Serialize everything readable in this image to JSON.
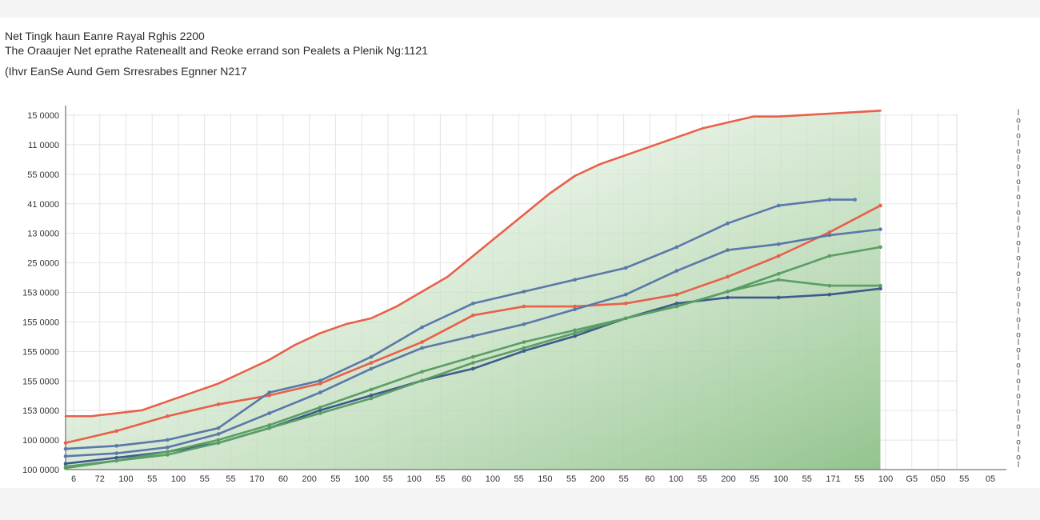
{
  "chart_data": {
    "type": "line",
    "title": "Net Tingk haun Eanre Rayal Rghis 2200",
    "subtitle": "The Oraaujer Net eprathe Rateneallt and Reoke errand son Pealets a Plenik Ng:1121",
    "caption": "(Ihvr EanSe Aund Gem Srresrabes Egnner N217",
    "xlabel": "",
    "ylabel": "",
    "grid": true,
    "legend": "none",
    "y_tick_labels": [
      "15 0000",
      "11 0000",
      "55 0000",
      "41 0000",
      "13 0000",
      "25 0000",
      "153 0000",
      "155 0000",
      "155 0000",
      "155 0000",
      "153 0000",
      "100 0000",
      "100 0000"
    ],
    "x_tick_labels": [
      "6",
      "72",
      "100",
      "55",
      "100",
      "55",
      "55",
      "170",
      "60",
      "200",
      "55",
      "100",
      "55",
      "100",
      "55",
      "60",
      "100",
      "55",
      "150",
      "55",
      "200",
      "55",
      "60",
      "100",
      "55",
      "200",
      "55",
      "100",
      "55",
      "171",
      "55",
      "100",
      "G5",
      "050",
      "55",
      "05"
    ],
    "right_tick_labels": [
      "l",
      "o",
      "l",
      "o",
      "l",
      "o",
      "l",
      "o",
      "l",
      "o",
      "l",
      "o",
      "l",
      "o",
      "l",
      "o",
      "l",
      "o",
      "l",
      "o",
      "l",
      "o",
      "l",
      "o",
      "l",
      "o",
      "l",
      "o",
      "l",
      "o",
      "l",
      "o",
      "l",
      "o",
      "l",
      "o",
      "l",
      "o",
      "l",
      "o",
      "l",
      "o",
      "l",
      "o",
      "l",
      "o",
      "l"
    ],
    "ylim": [
      0,
      12
    ],
    "xlim": [
      0,
      35
    ],
    "colors": {
      "red": "#e8604a",
      "blue": "#5a78a8",
      "navy": "#3d5a8c",
      "green": "#5a9e64",
      "fill": "#9ccc98"
    },
    "series": [
      {
        "color": "red",
        "marker": false,
        "x": [
          0,
          1,
          2,
          3,
          4,
          5,
          6,
          7,
          8,
          9,
          10,
          11,
          12,
          13,
          14,
          15,
          16,
          17,
          18,
          19,
          20,
          21,
          22,
          23,
          24,
          25,
          26,
          27,
          28,
          29,
          30,
          31,
          32
        ],
        "y": [
          1.8,
          1.8,
          1.9,
          2.0,
          2.3,
          2.6,
          2.9,
          3.3,
          3.7,
          4.2,
          4.6,
          4.9,
          5.1,
          5.5,
          6.0,
          6.5,
          7.2,
          7.9,
          8.6,
          9.3,
          9.9,
          10.3,
          10.6,
          10.9,
          11.2,
          11.5,
          11.7,
          11.9,
          11.9,
          11.95,
          12.0,
          12.05,
          12.1
        ]
      },
      {
        "color": "red",
        "marker": true,
        "x": [
          0,
          2,
          4,
          6,
          8,
          10,
          12,
          14,
          16,
          18,
          20,
          22,
          24,
          26,
          28,
          30,
          32
        ],
        "y": [
          0.9,
          1.3,
          1.8,
          2.2,
          2.5,
          2.9,
          3.6,
          4.3,
          5.2,
          5.5,
          5.5,
          5.6,
          5.9,
          6.5,
          7.2,
          8.0,
          8.9
        ]
      },
      {
        "color": "blue",
        "marker": true,
        "x": [
          0,
          2,
          4,
          6,
          8,
          10,
          12,
          14,
          16,
          18,
          20,
          22,
          24,
          26,
          28,
          30,
          31
        ],
        "y": [
          0.7,
          0.8,
          1.0,
          1.4,
          2.6,
          3.0,
          3.8,
          4.8,
          5.6,
          6.0,
          6.4,
          6.8,
          7.5,
          8.3,
          8.9,
          9.1,
          9.1
        ]
      },
      {
        "color": "blue",
        "marker": true,
        "x": [
          0,
          2,
          4,
          6,
          8,
          10,
          12,
          14,
          16,
          18,
          20,
          22,
          24,
          26,
          28,
          30,
          32
        ],
        "y": [
          0.45,
          0.55,
          0.75,
          1.2,
          1.9,
          2.6,
          3.4,
          4.1,
          4.5,
          4.9,
          5.4,
          5.9,
          6.7,
          7.4,
          7.6,
          7.9,
          8.1
        ]
      },
      {
        "color": "navy",
        "marker": true,
        "x": [
          0,
          2,
          4,
          6,
          8,
          10,
          12,
          14,
          16,
          18,
          20,
          22,
          24,
          26,
          28,
          30,
          32
        ],
        "y": [
          0.2,
          0.4,
          0.6,
          0.9,
          1.4,
          2.0,
          2.5,
          3.0,
          3.4,
          4.0,
          4.5,
          5.1,
          5.6,
          5.8,
          5.8,
          5.9,
          6.1
        ]
      },
      {
        "color": "green",
        "marker": true,
        "x": [
          0,
          2,
          4,
          6,
          8,
          10,
          12,
          14,
          16,
          18,
          20,
          22,
          24,
          26,
          28,
          30,
          32
        ],
        "y": [
          0.05,
          0.3,
          0.5,
          0.9,
          1.4,
          1.9,
          2.4,
          3.0,
          3.6,
          4.1,
          4.6,
          5.1,
          5.5,
          6.0,
          6.4,
          6.2,
          6.2
        ]
      },
      {
        "color": "green",
        "marker": true,
        "x": [
          0,
          2,
          4,
          6,
          8,
          10,
          12,
          14,
          16,
          18,
          20,
          22,
          24,
          26,
          28,
          30,
          32
        ],
        "y": [
          0.1,
          0.3,
          0.6,
          1.0,
          1.5,
          2.1,
          2.7,
          3.3,
          3.8,
          4.3,
          4.7,
          5.1,
          5.5,
          6.0,
          6.6,
          7.2,
          7.5
        ]
      }
    ]
  }
}
